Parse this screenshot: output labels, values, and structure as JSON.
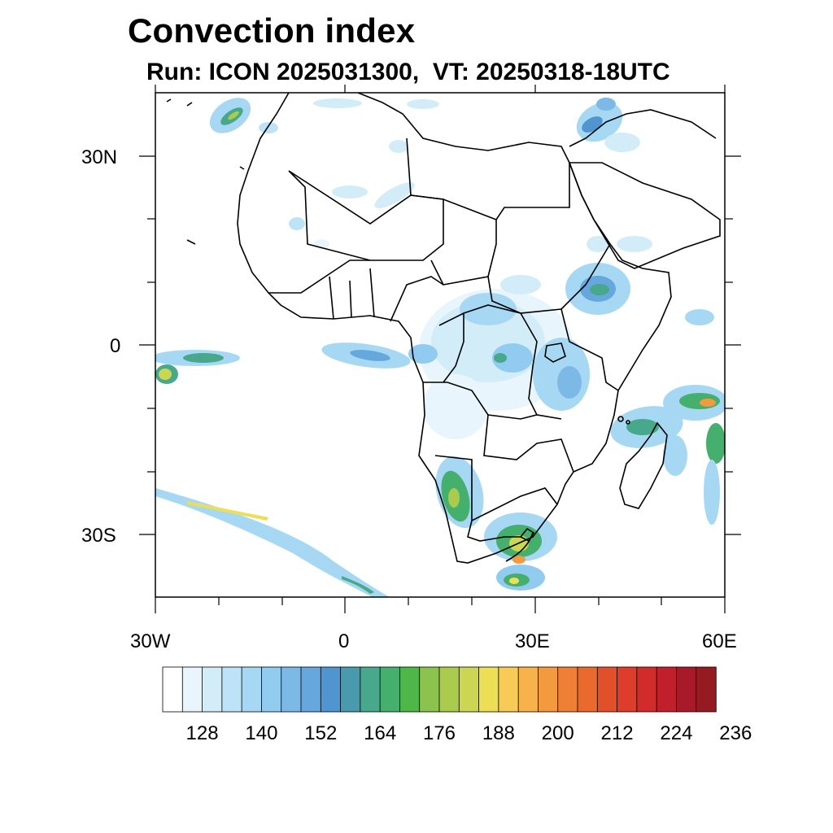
{
  "title": "Convection index",
  "subtitle": "Run: ICON 2025031300,  VT: 20250318-18UTC",
  "map": {
    "extent": {
      "lon": [
        -30,
        60
      ],
      "lat": [
        -40,
        40
      ]
    },
    "lat_labels": [
      "30N",
      "0",
      "30S"
    ],
    "lon_labels": [
      "30W",
      "0",
      "30E",
      "60E"
    ]
  },
  "colorbar": {
    "colors": [
      "#ffffff",
      "#e8f5fc",
      "#d2ecf8",
      "#bde3f6",
      "#a6d8f4",
      "#92cbf0",
      "#7cb9e6",
      "#66a7dd",
      "#5095cf",
      "#4a9aae",
      "#48a88c",
      "#45af6d",
      "#4fb64a",
      "#8cc24e",
      "#abcb4f",
      "#cbd753",
      "#ecdf56",
      "#f7cb55",
      "#f7b24c",
      "#f39a3e",
      "#ef7f34",
      "#ea6a2d",
      "#e25029",
      "#dd3d2a",
      "#d22b2c",
      "#c01f2c",
      "#a8192a",
      "#961a21"
    ],
    "labels": [
      "128",
      "140",
      "152",
      "164",
      "176",
      "188",
      "200",
      "212",
      "224",
      "236"
    ]
  }
}
